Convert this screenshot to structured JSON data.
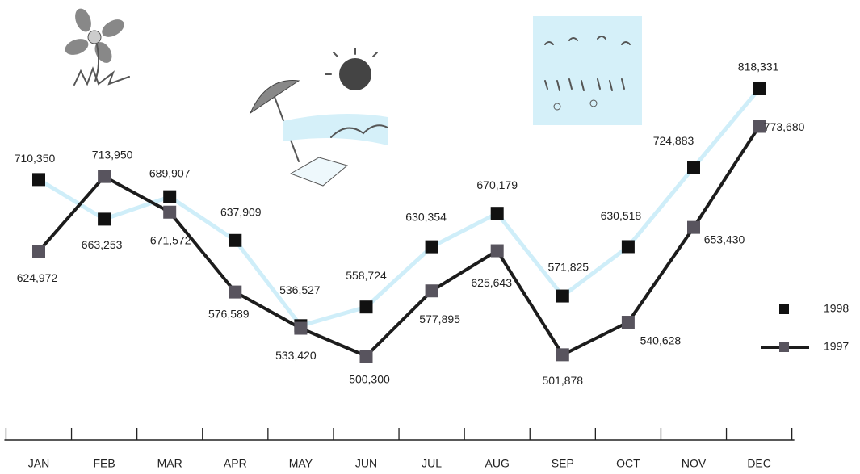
{
  "chart_data": {
    "type": "line",
    "categories": [
      "JAN",
      "FEB",
      "MAR",
      "APR",
      "MAY",
      "JUN",
      "JUL",
      "AUG",
      "SEP",
      "OCT",
      "NOV",
      "DEC"
    ],
    "series": [
      {
        "name": "1998",
        "color": "#111111",
        "line_color": "#cfeef9",
        "values": [
          710350,
          663253,
          689907,
          637909,
          536527,
          558724,
          630354,
          670179,
          571825,
          630518,
          724883,
          818331
        ],
        "value_labels": [
          "710,350",
          "663,253",
          "689,907",
          "637,909",
          "536,527",
          "558,724",
          "630,354",
          "670,179",
          "571,825",
          "630,518",
          "724,883",
          "818,331"
        ]
      },
      {
        "name": "1997",
        "color": "#58545e",
        "line_color": "#1c1c1c",
        "values": [
          624972,
          713950,
          671572,
          576589,
          533420,
          500300,
          577895,
          625643,
          501878,
          540628,
          653430,
          773680
        ],
        "value_labels": [
          "624,972",
          "713,950",
          "671,572",
          "576,589",
          "533,420",
          "500,300",
          "577,895",
          "625,643",
          "501,878",
          "540,628",
          "653,430",
          "773,680"
        ]
      }
    ]
  }
}
